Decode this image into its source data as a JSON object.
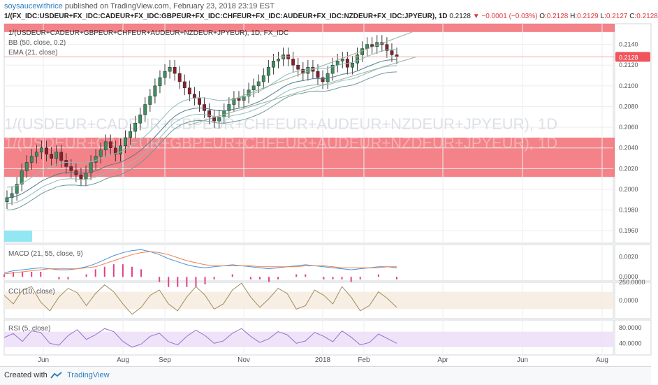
{
  "header": {
    "author": "soysaucewithrice",
    "published_text": " published on TradingView.com, February 23, 2018 23:19 EST",
    "symbol_line": "1/(FX_IDC:USDEUR+FX_IDC:CADEUR+FX_IDC:GBPEUR+FX_IDC:CHFEUR+FX_IDC:AUDEUR+FX_IDC:NZDEUR+FX_IDC:JPYEUR), 1D",
    "last": "0.2128",
    "change": "−0.0001 (−0.03%)",
    "o_label": "O:",
    "o": "0.2128",
    "h_label": "H:",
    "h": "0.2129",
    "l_label": "L:",
    "l": "0.2127",
    "c_label": "C:",
    "c": "0.2128"
  },
  "legend": {
    "title": "1/(USDEUR+CADEUR+GBPEUR+CHFEUR+AUDEUR+NZDEUR+JPYEUR), 1D, FX_IDC",
    "bb": "BB (50, close, 0.2)",
    "ema": "EMA (21, close)",
    "macd": "MACD (21, 55, close, 9)",
    "cci": "CCI (10, close)",
    "rsi": "RSI (5, close)"
  },
  "watermark": "1/(USDEUR+CADEUR+GBPEUR+CHFEUR+AUDEUR+NZDEUR+JPYEUR), 1D",
  "price_tag": "0.2128",
  "footer": {
    "created_with": "Created with",
    "brand": "TradingView"
  },
  "colors": {
    "up": "#53b987",
    "down": "#eb4d5c",
    "candle_body_up": "#3d8f5e",
    "candle_body_down": "#8a1f2c",
    "zone": "#f26d74",
    "macd": "#4a90d9",
    "signal": "#f08050",
    "hist": "#e0408a",
    "cci": "#a08a60",
    "cci_band": "#f5ebdc",
    "rsi": "#9b6fc5",
    "rsi_band": "#ece0f8",
    "price_tag": "#f2545b",
    "cyan_box": "#7fe3f0",
    "bb": "#8fbcbb",
    "ema": "#4d7d8a"
  },
  "chart_data": [
    {
      "type": "candlestick",
      "title": "1/(USDEUR+CADEUR+GBPEUR+CHFEUR+AUDEUR+NZDEUR+JPYEUR), 1D, FX_IDC",
      "x_ticks": [
        "Jun",
        "Aug",
        "Sep",
        "Nov",
        "2018",
        "Feb",
        "Apr",
        "Jun",
        "Aug"
      ],
      "y_ticks": [
        "0.2140",
        "0.2120",
        "0.2100",
        "0.2080",
        "0.2060",
        "0.2040",
        "0.2020",
        "0.2000",
        "0.1980",
        "0.1960"
      ],
      "ylim": [
        0.1948,
        0.216
      ],
      "last_price": 0.2128,
      "supply_zone": [
        0.2012,
        0.205
      ],
      "close_series": [
        0.1992,
        0.1996,
        0.2005,
        0.2018,
        0.2026,
        0.2032,
        0.2036,
        0.204,
        0.2034,
        0.203,
        0.2036,
        0.2028,
        0.2022,
        0.2018,
        0.2014,
        0.201,
        0.2016,
        0.2026,
        0.2032,
        0.2038,
        0.2046,
        0.204,
        0.2034,
        0.2042,
        0.205,
        0.2056,
        0.2064,
        0.2072,
        0.2082,
        0.209,
        0.21,
        0.2108,
        0.2114,
        0.2118,
        0.2112,
        0.2104,
        0.2098,
        0.2092,
        0.2088,
        0.2082,
        0.2076,
        0.207,
        0.2066,
        0.207,
        0.2076,
        0.2082,
        0.2088,
        0.2086,
        0.209,
        0.2096,
        0.21,
        0.2104,
        0.211,
        0.2118,
        0.2124,
        0.2126,
        0.213,
        0.2126,
        0.212,
        0.2116,
        0.2112,
        0.2118,
        0.2114,
        0.2108,
        0.2104,
        0.2112,
        0.212,
        0.2124,
        0.2126,
        0.2118,
        0.2122,
        0.213,
        0.2136,
        0.214,
        0.2138,
        0.2142,
        0.214,
        0.2134,
        0.213,
        0.2128
      ],
      "trendline_upper": [
        [
          0.2116,
          0.2152
        ]
      ],
      "trendline_lower": [
        [
          0.207,
          0.2128
        ]
      ]
    },
    {
      "type": "line",
      "title": "MACD (21, 55, close, 9)",
      "y_ticks": [
        "0.0020",
        "0.0000"
      ],
      "ylim": [
        -0.0004,
        0.0032
      ],
      "series": [
        {
          "name": "MACD",
          "values": [
            0.0004,
            0.0006,
            0.0007,
            0.0008,
            0.0009,
            0.0008,
            0.0007,
            0.0007,
            0.0008,
            0.001,
            0.0013,
            0.0017,
            0.0021,
            0.0024,
            0.0026,
            0.0027,
            0.0025,
            0.0022,
            0.0018,
            0.0015,
            0.0012,
            0.001,
            0.0009,
            0.001,
            0.0011,
            0.0012,
            0.0011,
            0.001,
            0.0009,
            0.0008,
            0.0009,
            0.001,
            0.0011,
            0.0012,
            0.0011,
            0.001,
            0.0009,
            0.0008,
            0.0007,
            0.0008,
            0.0009,
            0.001,
            0.001,
            0.0009
          ]
        },
        {
          "name": "Signal",
          "values": [
            0.0003,
            0.0004,
            0.0005,
            0.0006,
            0.0007,
            0.0008,
            0.0008,
            0.0008,
            0.0008,
            0.0009,
            0.001,
            0.0013,
            0.0016,
            0.0019,
            0.0022,
            0.0024,
            0.0025,
            0.0024,
            0.0022,
            0.0019,
            0.0016,
            0.0014,
            0.0012,
            0.0011,
            0.0011,
            0.0011,
            0.0011,
            0.0011,
            0.001,
            0.001,
            0.001,
            0.001,
            0.001,
            0.0011,
            0.0011,
            0.0011,
            0.001,
            0.0009,
            0.0009,
            0.0009,
            0.0009,
            0.0009,
            0.001,
            0.001
          ]
        }
      ]
    },
    {
      "type": "line",
      "title": "CCI (10, close)",
      "y_ticks": [
        "250.0000",
        "0.0000"
      ],
      "series": [
        {
          "name": "CCI",
          "values": [
            60,
            -40,
            120,
            160,
            -20,
            -120,
            40,
            140,
            90,
            -60,
            80,
            180,
            100,
            -40,
            -160,
            -80,
            60,
            120,
            -40,
            -120,
            40,
            160,
            60,
            -100,
            -40,
            120,
            200,
            40,
            -80,
            20,
            140,
            80,
            -100,
            -60,
            120,
            60,
            -40,
            160,
            40,
            -120,
            -60,
            100,
            20,
            -80
          ]
        }
      ]
    },
    {
      "type": "line",
      "title": "RSI (5, close)",
      "y_ticks": [
        "80.0000",
        "40.0000"
      ],
      "series": [
        {
          "name": "RSI",
          "values": [
            55,
            65,
            45,
            72,
            68,
            40,
            35,
            60,
            75,
            50,
            62,
            78,
            70,
            45,
            30,
            38,
            58,
            66,
            44,
            36,
            58,
            74,
            60,
            40,
            46,
            66,
            78,
            58,
            42,
            52,
            70,
            62,
            40,
            46,
            68,
            58,
            44,
            72,
            56,
            36,
            42,
            64,
            52,
            40
          ]
        }
      ]
    }
  ]
}
